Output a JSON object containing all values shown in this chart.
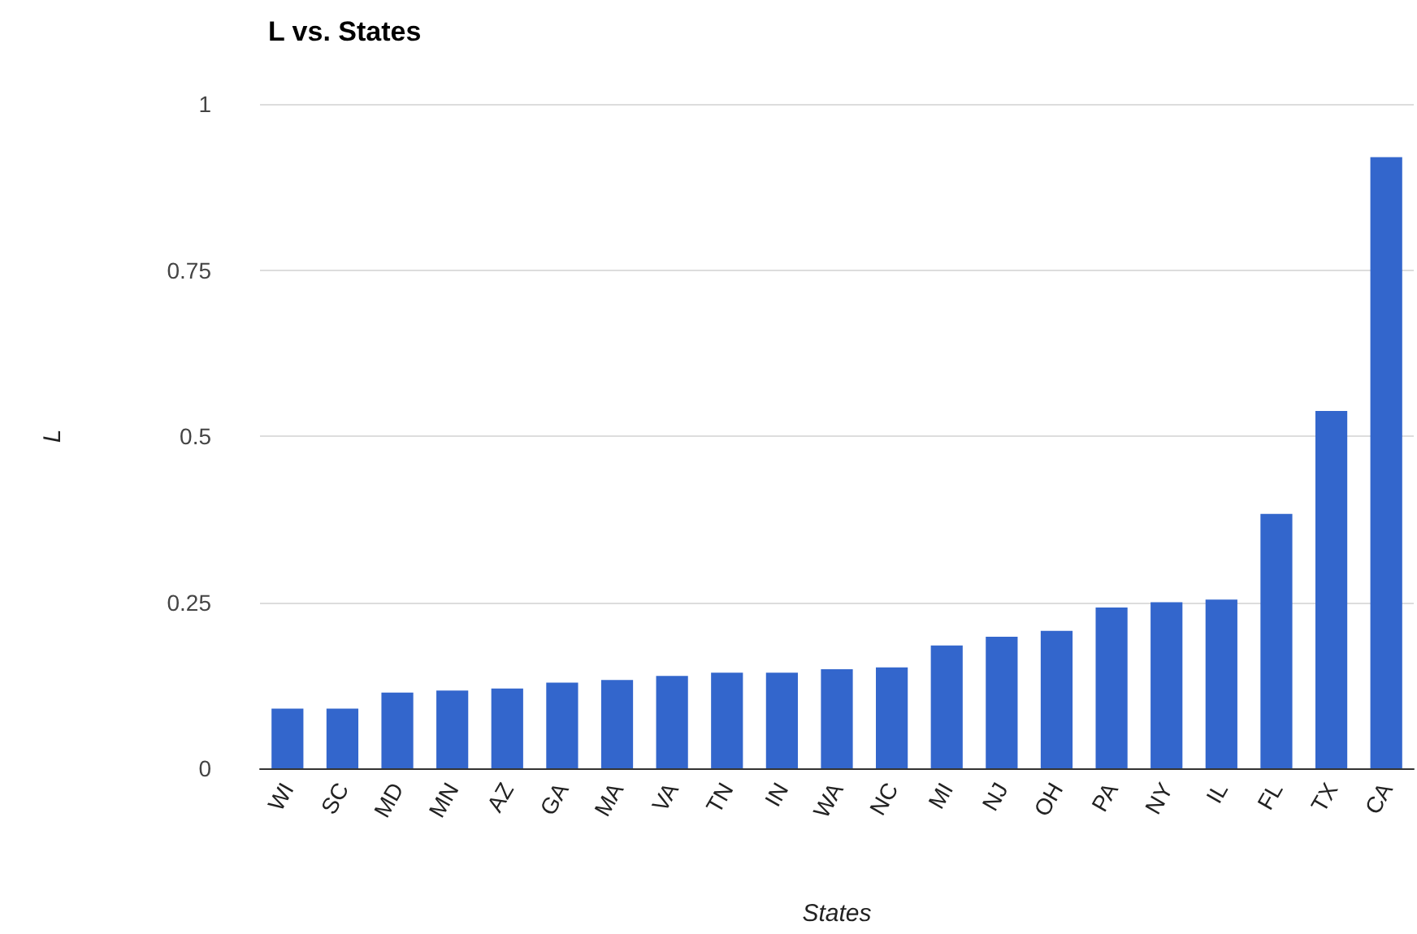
{
  "chart_data": {
    "type": "bar",
    "title": "L vs. States",
    "xlabel": "States",
    "ylabel": "L",
    "categories": [
      "WI",
      "SC",
      "MD",
      "MN",
      "AZ",
      "GA",
      "MA",
      "VA",
      "TN",
      "IN",
      "WA",
      "NC",
      "MI",
      "NJ",
      "OH",
      "PA",
      "NY",
      "IL",
      "FL",
      "TX",
      "CA"
    ],
    "values": [
      0.09,
      0.09,
      0.114,
      0.117,
      0.12,
      0.129,
      0.133,
      0.139,
      0.144,
      0.144,
      0.149,
      0.152,
      0.185,
      0.198,
      0.207,
      0.242,
      0.25,
      0.254,
      0.383,
      0.538,
      0.92
    ],
    "color": "#3366cc",
    "ylim": [
      0,
      1
    ],
    "yticks": [
      0,
      0.25,
      0.5,
      0.75,
      1
    ],
    "grid": "y"
  }
}
